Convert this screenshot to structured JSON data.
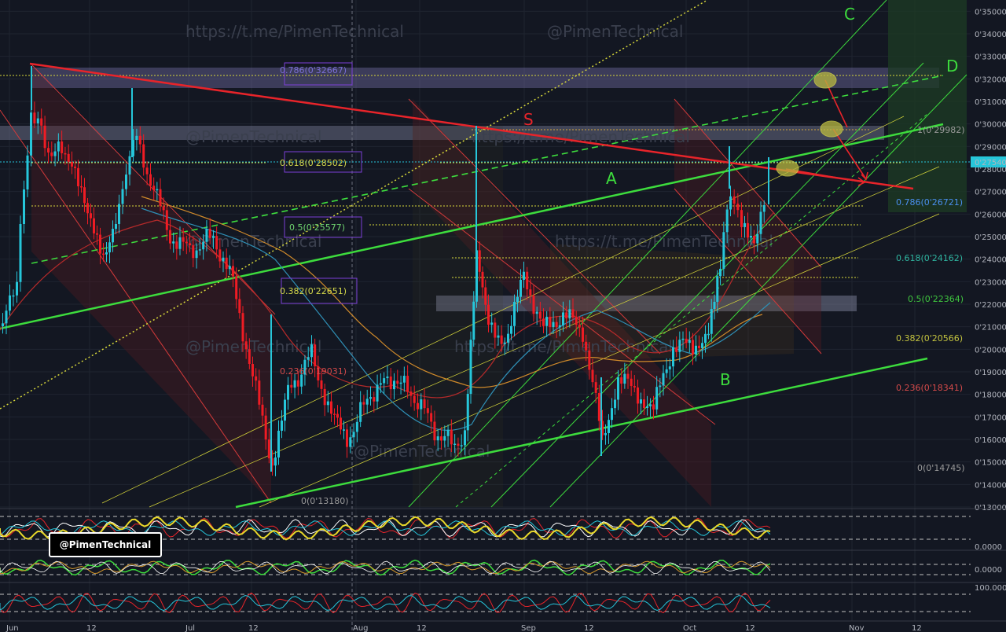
{
  "chart_data": {
    "type": "candlestick",
    "watermarks": [
      "https://t.me/PimenTechnical",
      "@PimenTechnical",
      "@PimenTechnical",
      "https://t.me/PimenTechnical",
      "@PimenTechnical",
      "https://t.me/PimenTechnical",
      "@PimenTechnical",
      "https://t.me/PimenTechnical",
      "@PimenTechnical"
    ],
    "handle": "@PimenTechnical",
    "price_axis": {
      "min": 0.13,
      "max": 0.355,
      "ticks": [
        "0'35000",
        "0'34000",
        "0'33000",
        "0'32000",
        "0'31000",
        "0'30000",
        "0'29000",
        "0'28000",
        "0'27000",
        "0'26000",
        "0'25000",
        "0'24000",
        "0'23000",
        "0'22000",
        "0'21000",
        "0'20000",
        "0'19000",
        "0'18000",
        "0'17000",
        "0'16000",
        "0'15000",
        "0'14000",
        "0'13000"
      ],
      "tick_values": [
        0.35,
        0.34,
        0.33,
        0.32,
        0.31,
        0.3,
        0.29,
        0.28,
        0.27,
        0.26,
        0.25,
        0.24,
        0.23,
        0.22,
        0.21,
        0.2,
        0.19,
        0.18,
        0.17,
        0.16,
        0.15,
        0.14,
        0.13
      ],
      "current_price": "0'27540",
      "current_value": 0.2754
    },
    "time_axis": {
      "labels": [
        "Jun",
        "12",
        "Jul",
        "12",
        "Aug",
        "12",
        "Sep",
        "12",
        "Oct",
        "12",
        "Nov",
        "12"
      ]
    },
    "fib_left": [
      {
        "label": "0.786(0'32667)",
        "value": 0.32667,
        "color": "#7b6fd6"
      },
      {
        "label": "0.618(0'28502)",
        "value": 0.28502,
        "color": "#d4d84a"
      },
      {
        "label": "0.5(0'25577)",
        "value": 0.25577,
        "color": "#6fd46f"
      },
      {
        "label": "0.382(0'22651)",
        "value": 0.22651,
        "color": "#d4d84a"
      },
      {
        "label": "0.236(0'19031)",
        "value": 0.19031,
        "color": "#d44a4a"
      },
      {
        "label": "0(0'13180)",
        "value": 0.1318,
        "color": "#9a9a9a"
      }
    ],
    "fib_right": [
      {
        "label": "1(0'29982)",
        "value": 0.29982,
        "color": "#9a9a9a"
      },
      {
        "label": "0.786(0'26721)",
        "value": 0.26721,
        "color": "#4a8ff0"
      },
      {
        "label": "0.618(0'24162)",
        "value": 0.24162,
        "color": "#2fb5a0"
      },
      {
        "label": "0.5(0'22364)",
        "value": 0.22364,
        "color": "#3fc43f"
      },
      {
        "label": "0.382(0'20566)",
        "value": 0.20566,
        "color": "#c4c43f"
      },
      {
        "label": "0.236(0'18341)",
        "value": 0.18341,
        "color": "#d44a4a"
      },
      {
        "label": "0(0'14745)",
        "value": 0.14745,
        "color": "#9a9a9a"
      }
    ],
    "annotations": [
      "S",
      "A",
      "B",
      "C",
      "D"
    ],
    "indicator_axis": [
      "0.0000",
      "0.0000",
      "100.0000"
    ],
    "colors": {
      "up": "#26c6da",
      "down": "#ef1c24",
      "trend_green": "#3ddc3d",
      "resistance": "#e8242a",
      "fib_yellow": "#d8d83a"
    }
  }
}
